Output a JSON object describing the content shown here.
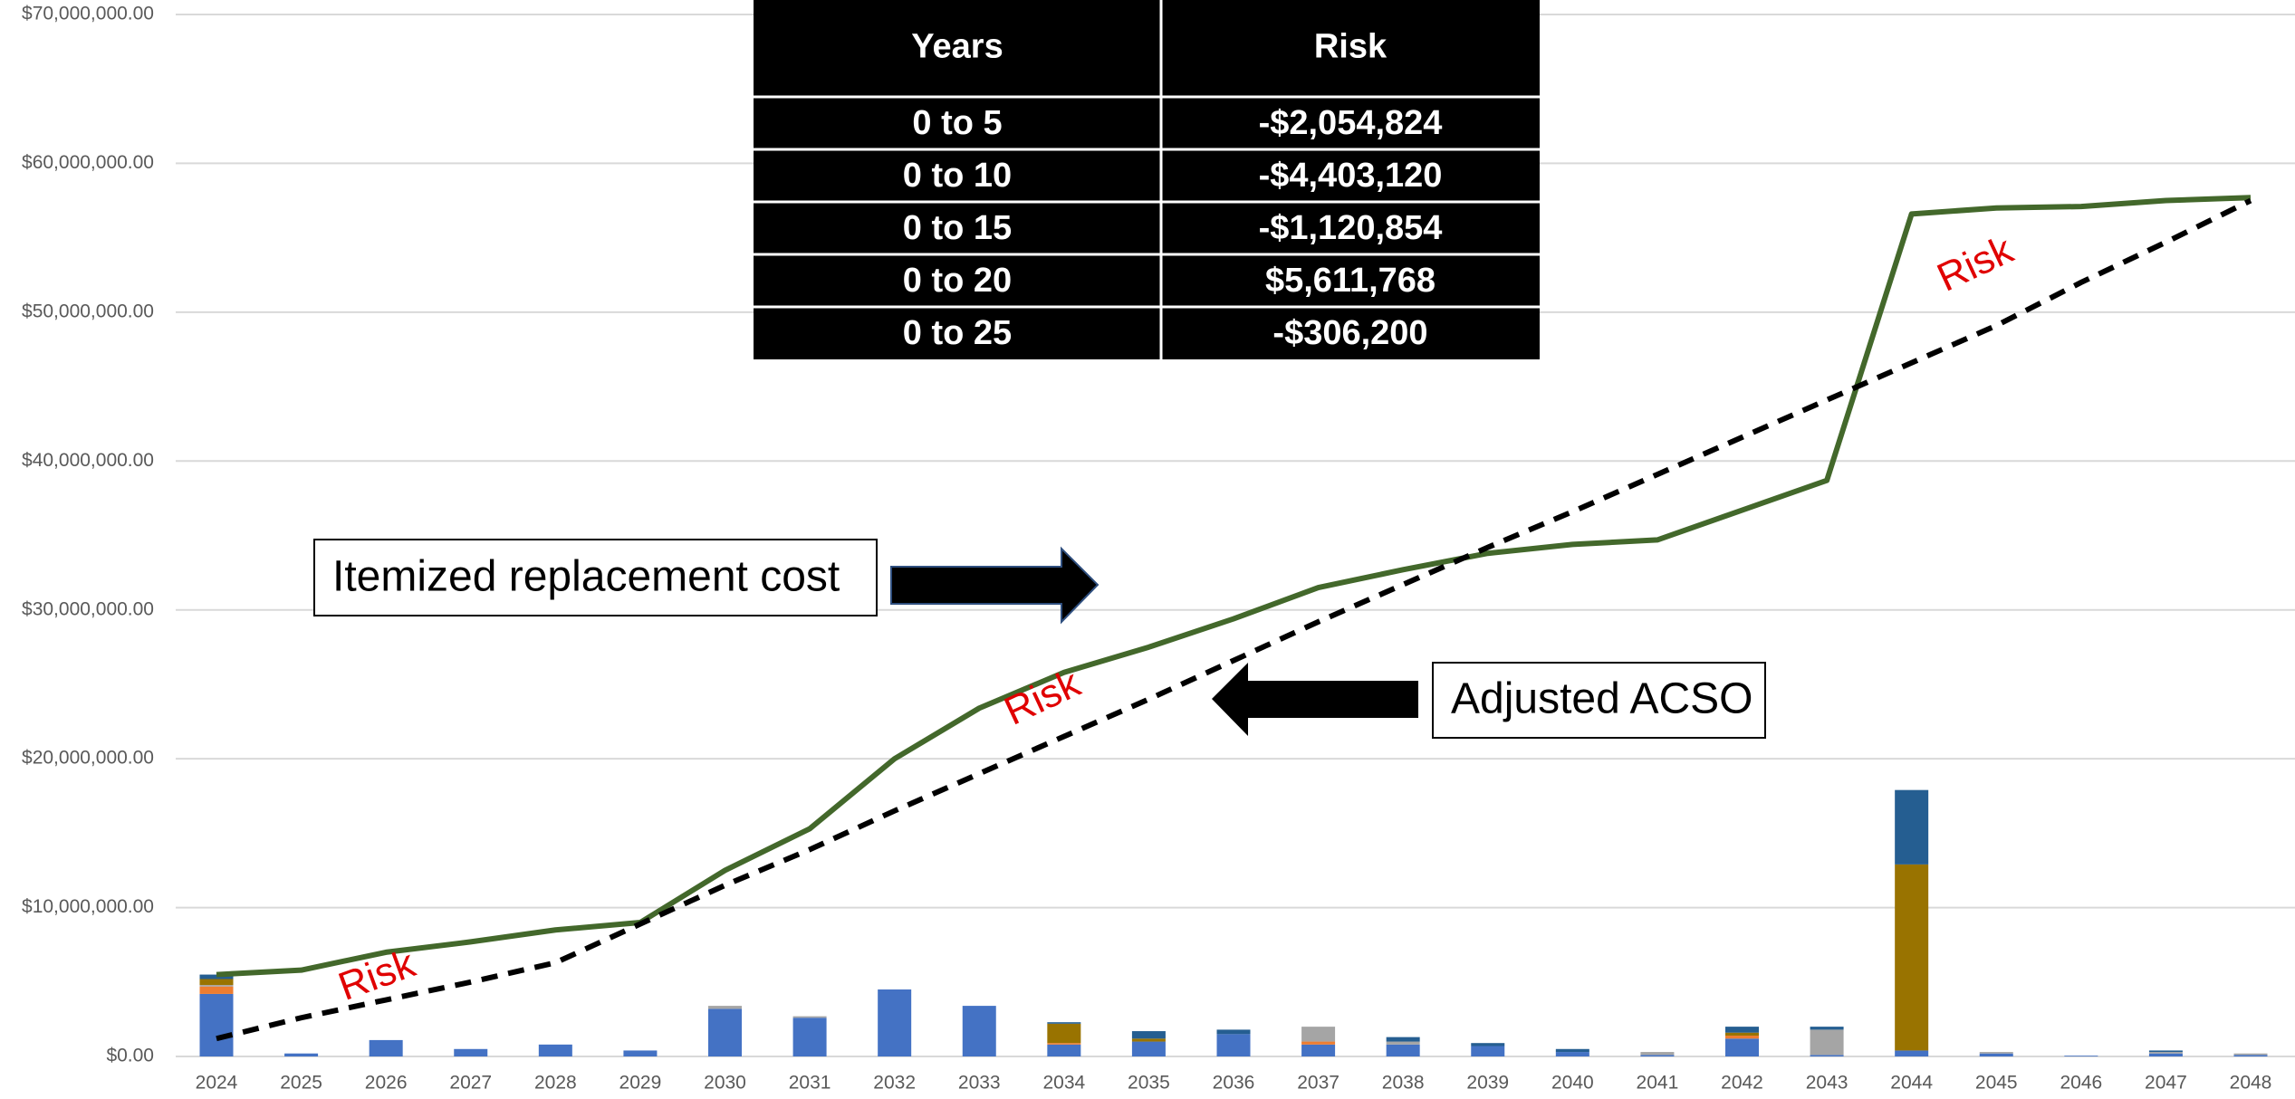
{
  "chart_data": {
    "type": "bar",
    "categories": [
      "2024",
      "2025",
      "2026",
      "2027",
      "2028",
      "2029",
      "2030",
      "2031",
      "2032",
      "2033",
      "2034",
      "2035",
      "2036",
      "2037",
      "2038",
      "2039",
      "2040",
      "2041",
      "2042",
      "2043",
      "2044",
      "2045",
      "2046",
      "2047",
      "2048"
    ],
    "ylim": [
      0,
      70000000
    ],
    "yticks": [
      {
        "value": 0,
        "label": "$0.00"
      },
      {
        "value": 10000000,
        "label": "$10,000,000.00"
      },
      {
        "value": 20000000,
        "label": "$20,000,000.00"
      },
      {
        "value": 30000000,
        "label": "$30,000,000.00"
      },
      {
        "value": 40000000,
        "label": "$40,000,000.00"
      },
      {
        "value": 50000000,
        "label": "$50,000,000.00"
      },
      {
        "value": 60000000,
        "label": "$60,000,000.00"
      },
      {
        "value": 70000000,
        "label": "$70,000,000.00"
      }
    ],
    "grid": true,
    "series": [
      {
        "type": "bar",
        "color": "#4472c4",
        "values": [
          4200000,
          200000,
          1100000,
          500000,
          800000,
          400000,
          3200000,
          2600000,
          4500000,
          3400000,
          800000,
          1000000,
          1500000,
          800000,
          800000,
          700000,
          300000,
          100000,
          1200000,
          100000,
          400000,
          200000,
          50000,
          200000,
          100000
        ]
      },
      {
        "type": "bar",
        "color": "#ed7d31",
        "values": [
          500000,
          0,
          0,
          0,
          0,
          0,
          0,
          0,
          0,
          0,
          100000,
          0,
          0,
          200000,
          0,
          0,
          0,
          0,
          200000,
          0,
          0,
          0,
          0,
          0,
          0
        ]
      },
      {
        "type": "bar",
        "color": "#a5a5a5",
        "values": [
          100000,
          0,
          0,
          0,
          0,
          0,
          200000,
          100000,
          0,
          0,
          0,
          0,
          0,
          1000000,
          200000,
          0,
          0,
          200000,
          0,
          1700000,
          0,
          100000,
          0,
          100000,
          100000
        ]
      },
      {
        "type": "bar",
        "color": "#997300",
        "values": [
          400000,
          0,
          0,
          0,
          0,
          0,
          0,
          0,
          0,
          0,
          1300000,
          200000,
          0,
          0,
          0,
          0,
          0,
          0,
          200000,
          0,
          12500000,
          0,
          0,
          0,
          0
        ]
      },
      {
        "type": "bar",
        "color": "#255e91",
        "values": [
          300000,
          0,
          0,
          0,
          0,
          0,
          0,
          0,
          0,
          0,
          100000,
          500000,
          300000,
          0,
          300000,
          200000,
          200000,
          0,
          400000,
          200000,
          5000000,
          0,
          0,
          100000,
          0
        ]
      },
      {
        "type": "line",
        "color": "#43682b",
        "dash": false,
        "values": [
          5500000,
          5800000,
          7000000,
          7700000,
          8500000,
          9000000,
          12500000,
          15300000,
          20000000,
          23400000,
          25800000,
          27500000,
          29400000,
          31500000,
          32700000,
          33800000,
          34400000,
          34700000,
          36700000,
          38700000,
          56600000,
          57000000,
          57100000,
          57500000,
          57700000
        ]
      },
      {
        "type": "line",
        "color": "#000000",
        "dash": true,
        "values": [
          1200000,
          2600000,
          3800000,
          5000000,
          6300000,
          8900000,
          11500000,
          13900000,
          16500000,
          19000000,
          21500000,
          24000000,
          26600000,
          29200000,
          31700000,
          34200000,
          36600000,
          39100000,
          41600000,
          44100000,
          46600000,
          49100000,
          52000000,
          54700000,
          57500000
        ]
      }
    ],
    "annotations": [
      "Itemized replacement cost",
      "Adjusted ACSO",
      "Risk",
      "Risk",
      "Risk"
    ],
    "table": {
      "header": [
        "Years",
        "Risk"
      ],
      "rows": [
        [
          "0 to 5",
          "-$2,054,824"
        ],
        [
          "0 to 10",
          "-$4,403,120"
        ],
        [
          "0 to 15",
          "-$1,120,854"
        ],
        [
          "0 to 20",
          "$5,611,768"
        ],
        [
          "0 to 25",
          "-$306,200"
        ]
      ]
    }
  }
}
